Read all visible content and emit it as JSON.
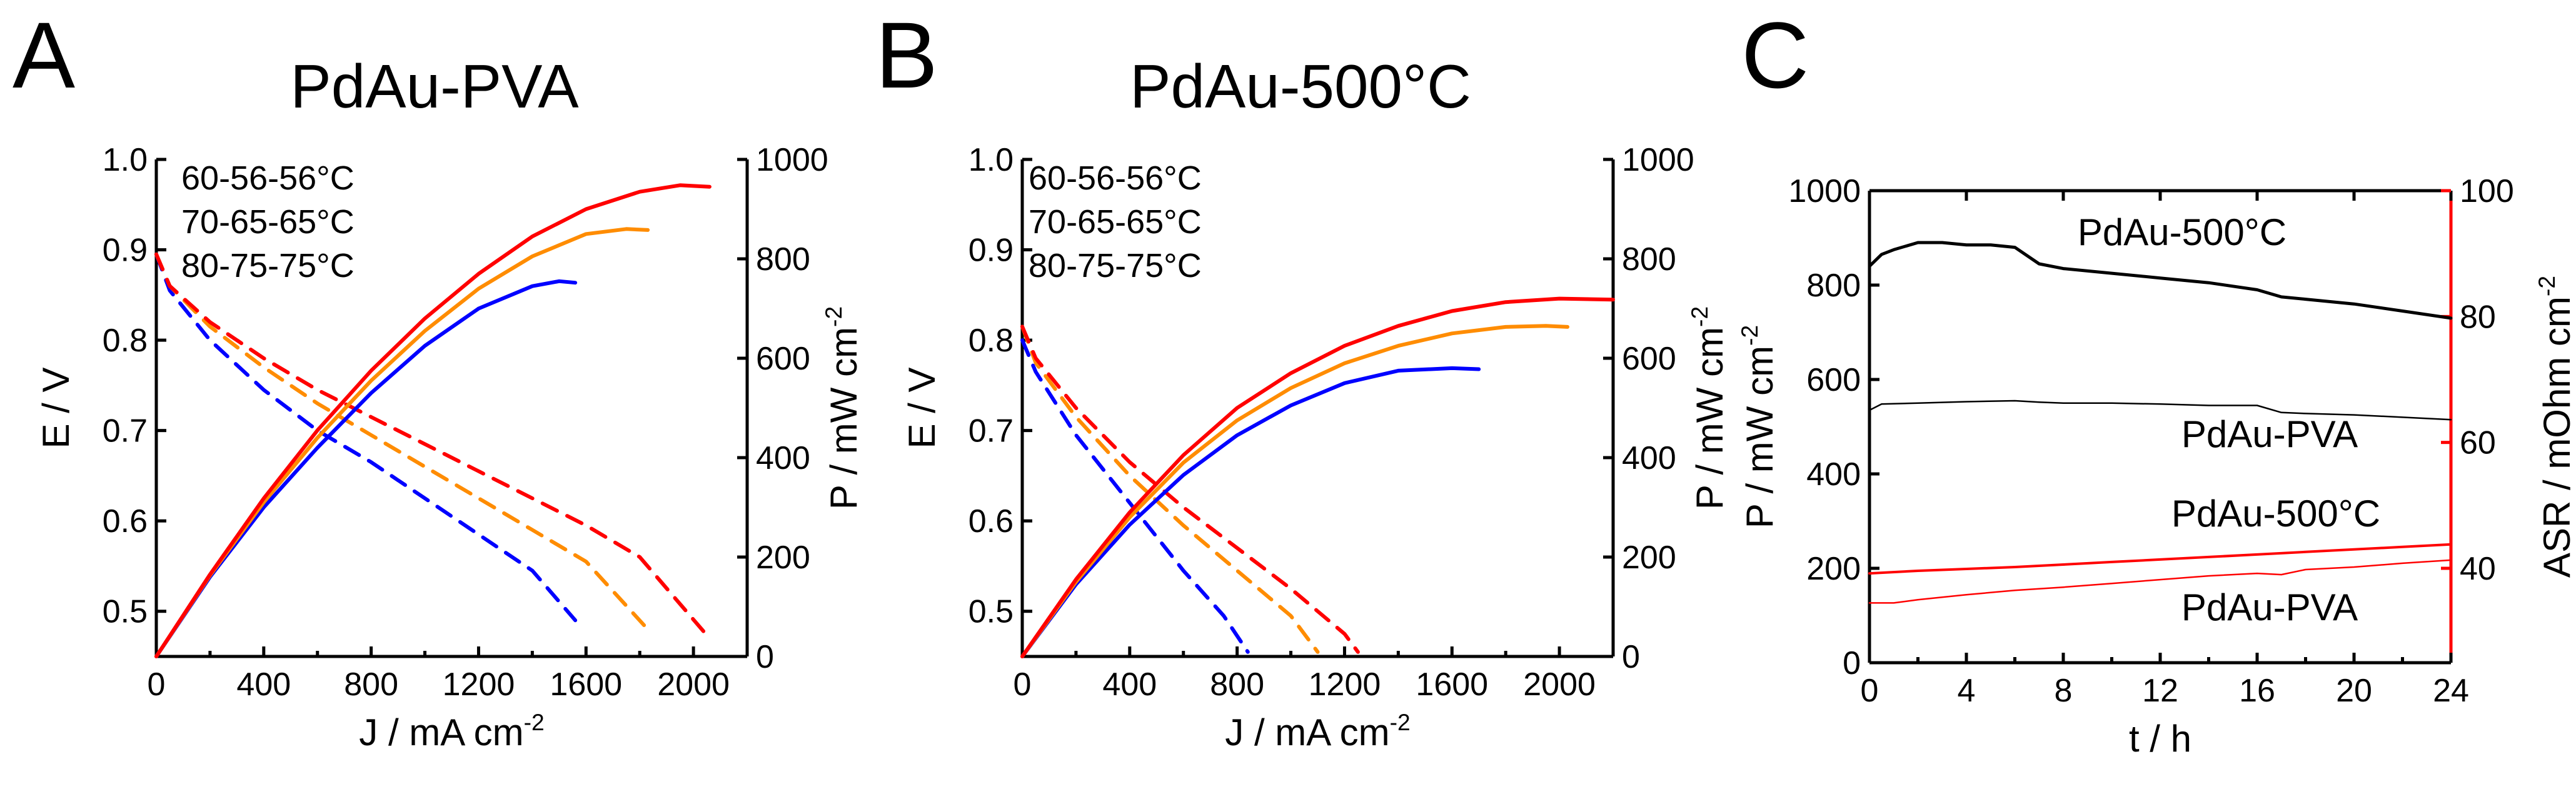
{
  "chart_data": [
    {
      "panel": "A",
      "type": "line",
      "title": "PdAu-PVA",
      "xlabel": "J / mA cm",
      "xlabel_sup": "-2",
      "ylabel": "E / V",
      "ylabel_right": "P / mW cm",
      "ylabel_right_sup": "-2",
      "xlim": [
        0,
        2200
      ],
      "ylim": [
        0.45,
        1.0
      ],
      "ylim_right": [
        0,
        1000
      ],
      "xticks": [
        "0",
        "400",
        "800",
        "1200",
        "1600",
        "2000"
      ],
      "xtick_values": [
        0,
        400,
        800,
        1200,
        1600,
        2000
      ],
      "yticks": [
        "0.5",
        "0.6",
        "0.7",
        "0.8",
        "0.9",
        "1.0"
      ],
      "ytick_values": [
        0.5,
        0.6,
        0.7,
        0.8,
        0.9,
        1.0
      ],
      "yticks_right": [
        "0",
        "200",
        "400",
        "600",
        "800",
        "1000"
      ],
      "ytick_right_values": [
        0,
        200,
        400,
        600,
        800,
        1000
      ],
      "legend": [
        {
          "label": "60-56-56°C",
          "color": "#0000ff"
        },
        {
          "label": "70-65-65°C",
          "color": "#ff8c00"
        },
        {
          "label": "80-75-75°C",
          "color": "#ff0000"
        }
      ],
      "series": [
        {
          "name": "60-56-56°C voltage",
          "axis": "left",
          "style": "dashed",
          "color": "#0000ff",
          "x": [
            0,
            50,
            200,
            400,
            600,
            800,
            1000,
            1200,
            1400,
            1560
          ],
          "y": [
            0.895,
            0.855,
            0.8,
            0.745,
            0.7,
            0.665,
            0.625,
            0.585,
            0.545,
            0.49
          ]
        },
        {
          "name": "70-65-65°C voltage",
          "axis": "left",
          "style": "dashed",
          "color": "#ff8c00",
          "x": [
            0,
            50,
            200,
            400,
            600,
            800,
            1000,
            1200,
            1400,
            1600,
            1830
          ],
          "y": [
            0.895,
            0.86,
            0.815,
            0.77,
            0.73,
            0.695,
            0.66,
            0.625,
            0.59,
            0.555,
            0.48
          ]
        },
        {
          "name": "80-75-75°C voltage",
          "axis": "left",
          "style": "dashed",
          "color": "#ff0000",
          "x": [
            0,
            50,
            200,
            400,
            600,
            800,
            1000,
            1200,
            1400,
            1600,
            1800,
            2060
          ],
          "y": [
            0.895,
            0.86,
            0.82,
            0.78,
            0.745,
            0.715,
            0.685,
            0.655,
            0.625,
            0.595,
            0.56,
            0.47
          ]
        },
        {
          "name": "60-56-56°C power",
          "axis": "right",
          "style": "solid",
          "color": "#0000ff",
          "x": [
            0,
            200,
            400,
            600,
            800,
            1000,
            1200,
            1400,
            1500,
            1560
          ],
          "y": [
            0,
            160,
            300,
            420,
            530,
            625,
            700,
            745,
            755,
            752
          ]
        },
        {
          "name": "70-65-65°C power",
          "axis": "right",
          "style": "solid",
          "color": "#ff8c00",
          "x": [
            0,
            200,
            400,
            600,
            800,
            1000,
            1200,
            1400,
            1600,
            1750,
            1830
          ],
          "y": [
            0,
            163,
            310,
            440,
            555,
            655,
            740,
            805,
            850,
            860,
            858
          ]
        },
        {
          "name": "80-75-75°C power",
          "axis": "right",
          "style": "solid",
          "color": "#ff0000",
          "x": [
            0,
            200,
            400,
            600,
            800,
            1000,
            1200,
            1400,
            1600,
            1800,
            1950,
            2060
          ],
          "y": [
            0,
            165,
            318,
            455,
            575,
            680,
            770,
            845,
            900,
            935,
            948,
            945
          ]
        }
      ]
    },
    {
      "panel": "B",
      "type": "line",
      "title": "PdAu-500°C",
      "xlabel": "J / mA cm",
      "xlabel_sup": "-2",
      "ylabel": "E / V",
      "ylabel_right": "P / mW cm",
      "ylabel_right_sup": "-2",
      "xlim": [
        0,
        2200
      ],
      "ylim": [
        0.45,
        1.0
      ],
      "ylim_right": [
        0,
        1000
      ],
      "xticks": [
        "0",
        "400",
        "800",
        "1200",
        "1600",
        "2000"
      ],
      "xtick_values": [
        0,
        400,
        800,
        1200,
        1600,
        2000
      ],
      "yticks": [
        "0.5",
        "0.6",
        "0.7",
        "0.8",
        "0.9",
        "1.0"
      ],
      "ytick_values": [
        0.5,
        0.6,
        0.7,
        0.8,
        0.9,
        1.0
      ],
      "yticks_right": [
        "0",
        "200",
        "400",
        "600",
        "800",
        "1000"
      ],
      "ytick_right_values": [
        0,
        200,
        400,
        600,
        800,
        1000
      ],
      "legend": [
        {
          "label": "60-56-56°C",
          "color": "#0000ff"
        },
        {
          "label": "70-65-65°C",
          "color": "#ff8c00"
        },
        {
          "label": "80-75-75°C",
          "color": "#ff0000"
        }
      ],
      "series": [
        {
          "name": "60-56-56°C voltage",
          "axis": "left",
          "style": "dashed",
          "color": "#0000ff",
          "x": [
            0,
            50,
            200,
            400,
            600,
            750,
            840
          ],
          "y": [
            0.8,
            0.765,
            0.695,
            0.62,
            0.545,
            0.495,
            0.455
          ]
        },
        {
          "name": "70-65-65°C voltage",
          "axis": "left",
          "style": "dashed",
          "color": "#ff8c00",
          "x": [
            0,
            50,
            200,
            400,
            600,
            800,
            1000,
            1100
          ],
          "y": [
            0.815,
            0.775,
            0.715,
            0.65,
            0.595,
            0.545,
            0.495,
            0.455
          ]
        },
        {
          "name": "80-75-75°C voltage",
          "axis": "left",
          "style": "dashed",
          "color": "#ff0000",
          "x": [
            0,
            50,
            200,
            400,
            600,
            800,
            1000,
            1200,
            1250
          ],
          "y": [
            0.815,
            0.78,
            0.725,
            0.665,
            0.615,
            0.57,
            0.525,
            0.475,
            0.455
          ]
        },
        {
          "name": "60-56-56°C power",
          "axis": "right",
          "style": "solid",
          "color": "#0000ff",
          "x": [
            0,
            200,
            400,
            600,
            800,
            1000,
            1200,
            1400,
            1600,
            1700
          ],
          "y": [
            0,
            145,
            265,
            365,
            445,
            505,
            550,
            575,
            580,
            578
          ]
        },
        {
          "name": "70-65-65°C power",
          "axis": "right",
          "style": "solid",
          "color": "#ff8c00",
          "x": [
            0,
            200,
            400,
            600,
            800,
            1000,
            1200,
            1400,
            1600,
            1800,
            1950,
            2030
          ],
          "y": [
            0,
            150,
            280,
            390,
            475,
            540,
            590,
            625,
            650,
            663,
            665,
            663
          ]
        },
        {
          "name": "80-75-75°C power",
          "axis": "right",
          "style": "solid",
          "color": "#ff0000",
          "x": [
            0,
            200,
            400,
            600,
            800,
            1000,
            1200,
            1400,
            1600,
            1800,
            2000,
            2200
          ],
          "y": [
            0,
            155,
            290,
            405,
            500,
            570,
            625,
            665,
            695,
            713,
            720,
            718
          ]
        }
      ]
    },
    {
      "panel": "C",
      "type": "line",
      "xlabel": "t / h",
      "ylabel": "P / mW cm",
      "ylabel_sup": "-2",
      "ylabel_right": "ASR / mOhm cm",
      "ylabel_right_sup": "-2",
      "xlim": [
        0,
        24
      ],
      "ylim": [
        0,
        1000
      ],
      "ylim_right": [
        25,
        100
      ],
      "xticks": [
        "0",
        "4",
        "8",
        "12",
        "16",
        "20",
        "24"
      ],
      "xtick_values": [
        0,
        4,
        8,
        12,
        16,
        20,
        24
      ],
      "yticks": [
        "0",
        "200",
        "400",
        "600",
        "800",
        "1000"
      ],
      "ytick_values": [
        0,
        200,
        400,
        600,
        800,
        1000
      ],
      "yticks_right": [
        "40",
        "60",
        "80",
        "100"
      ],
      "ytick_right_values": [
        40,
        60,
        80,
        100
      ],
      "annotations": [
        {
          "text": "PdAu-500°C",
          "color": "#000000"
        },
        {
          "text": "PdAu-PVA",
          "color": "#000000"
        },
        {
          "text": "PdAu-500°C",
          "color": "#ff0000"
        },
        {
          "text": "PdAu-PVA",
          "color": "#ff0000"
        }
      ],
      "series": [
        {
          "name": "PdAu-500°C power",
          "axis": "left",
          "color": "#000000",
          "width": 5,
          "x": [
            0,
            0.5,
            1,
            2,
            3,
            4,
            5,
            6,
            7,
            8,
            10,
            12,
            14,
            16,
            17,
            18,
            20,
            22,
            24
          ],
          "y": [
            840,
            865,
            875,
            890,
            890,
            885,
            885,
            880,
            845,
            835,
            825,
            815,
            805,
            790,
            775,
            770,
            760,
            745,
            730
          ]
        },
        {
          "name": "PdAu-PVA power",
          "axis": "left",
          "color": "#000000",
          "width": 2.5,
          "x": [
            0,
            0.5,
            2,
            4,
            6,
            7,
            8,
            10,
            12,
            14,
            16,
            17,
            18,
            20,
            22,
            24
          ],
          "y": [
            535,
            548,
            550,
            553,
            555,
            552,
            550,
            550,
            548,
            545,
            545,
            530,
            528,
            525,
            520,
            515
          ]
        },
        {
          "name": "PdAu-500°C ASR",
          "axis": "right",
          "color": "#ff0000",
          "width": 4,
          "x": [
            0,
            2,
            4,
            6,
            8,
            10,
            12,
            14,
            16,
            18,
            20,
            22,
            24
          ],
          "y": [
            39.2,
            39.6,
            39.9,
            40.2,
            40.6,
            41.0,
            41.4,
            41.8,
            42.2,
            42.6,
            43.0,
            43.4,
            43.8
          ]
        },
        {
          "name": "PdAu-PVA ASR",
          "axis": "right",
          "color": "#ff0000",
          "width": 2.5,
          "x": [
            0,
            1,
            2,
            4,
            6,
            8,
            10,
            12,
            14,
            16,
            17,
            18,
            20,
            22,
            24
          ],
          "y": [
            34.5,
            34.5,
            35.0,
            35.8,
            36.5,
            37.0,
            37.6,
            38.2,
            38.8,
            39.2,
            39.0,
            39.8,
            40.2,
            40.8,
            41.3
          ]
        }
      ]
    }
  ]
}
